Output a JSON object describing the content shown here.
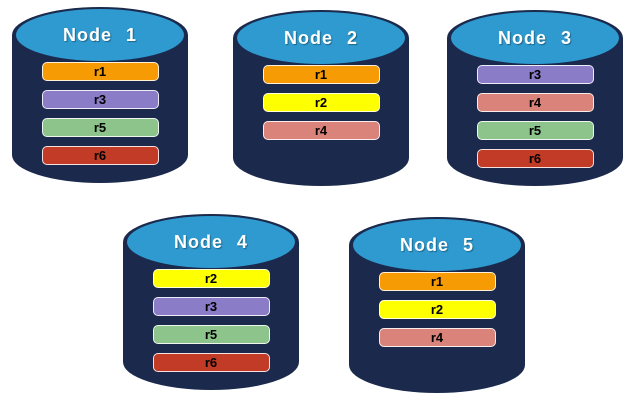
{
  "diagram": {
    "colors": {
      "background": "#ffffff",
      "cylinder_body": "#1b2a4c",
      "cylinder_top": "#2e9ad0",
      "node_title_text": "#ffffff",
      "replica_label_text": "#000000"
    },
    "replica_colors": {
      "r1": "#f79b04",
      "r2": "#feff00",
      "r3": "#8b7cc8",
      "r4": "#d9837a",
      "r5": "#8cc48c",
      "r6": "#c23b27"
    },
    "nodes": [
      {
        "label": "Node 1",
        "replicas": [
          "r1",
          "r3",
          "r5",
          "r6"
        ]
      },
      {
        "label": "Node 2",
        "replicas": [
          "r1",
          "r2",
          "r4"
        ]
      },
      {
        "label": "Node 3",
        "replicas": [
          "r3",
          "r4",
          "r5",
          "r6"
        ]
      },
      {
        "label": "Node 4",
        "replicas": [
          "r2",
          "r3",
          "r5",
          "r6"
        ]
      },
      {
        "label": "Node 5",
        "replicas": [
          "r1",
          "r2",
          "r4"
        ]
      }
    ]
  }
}
